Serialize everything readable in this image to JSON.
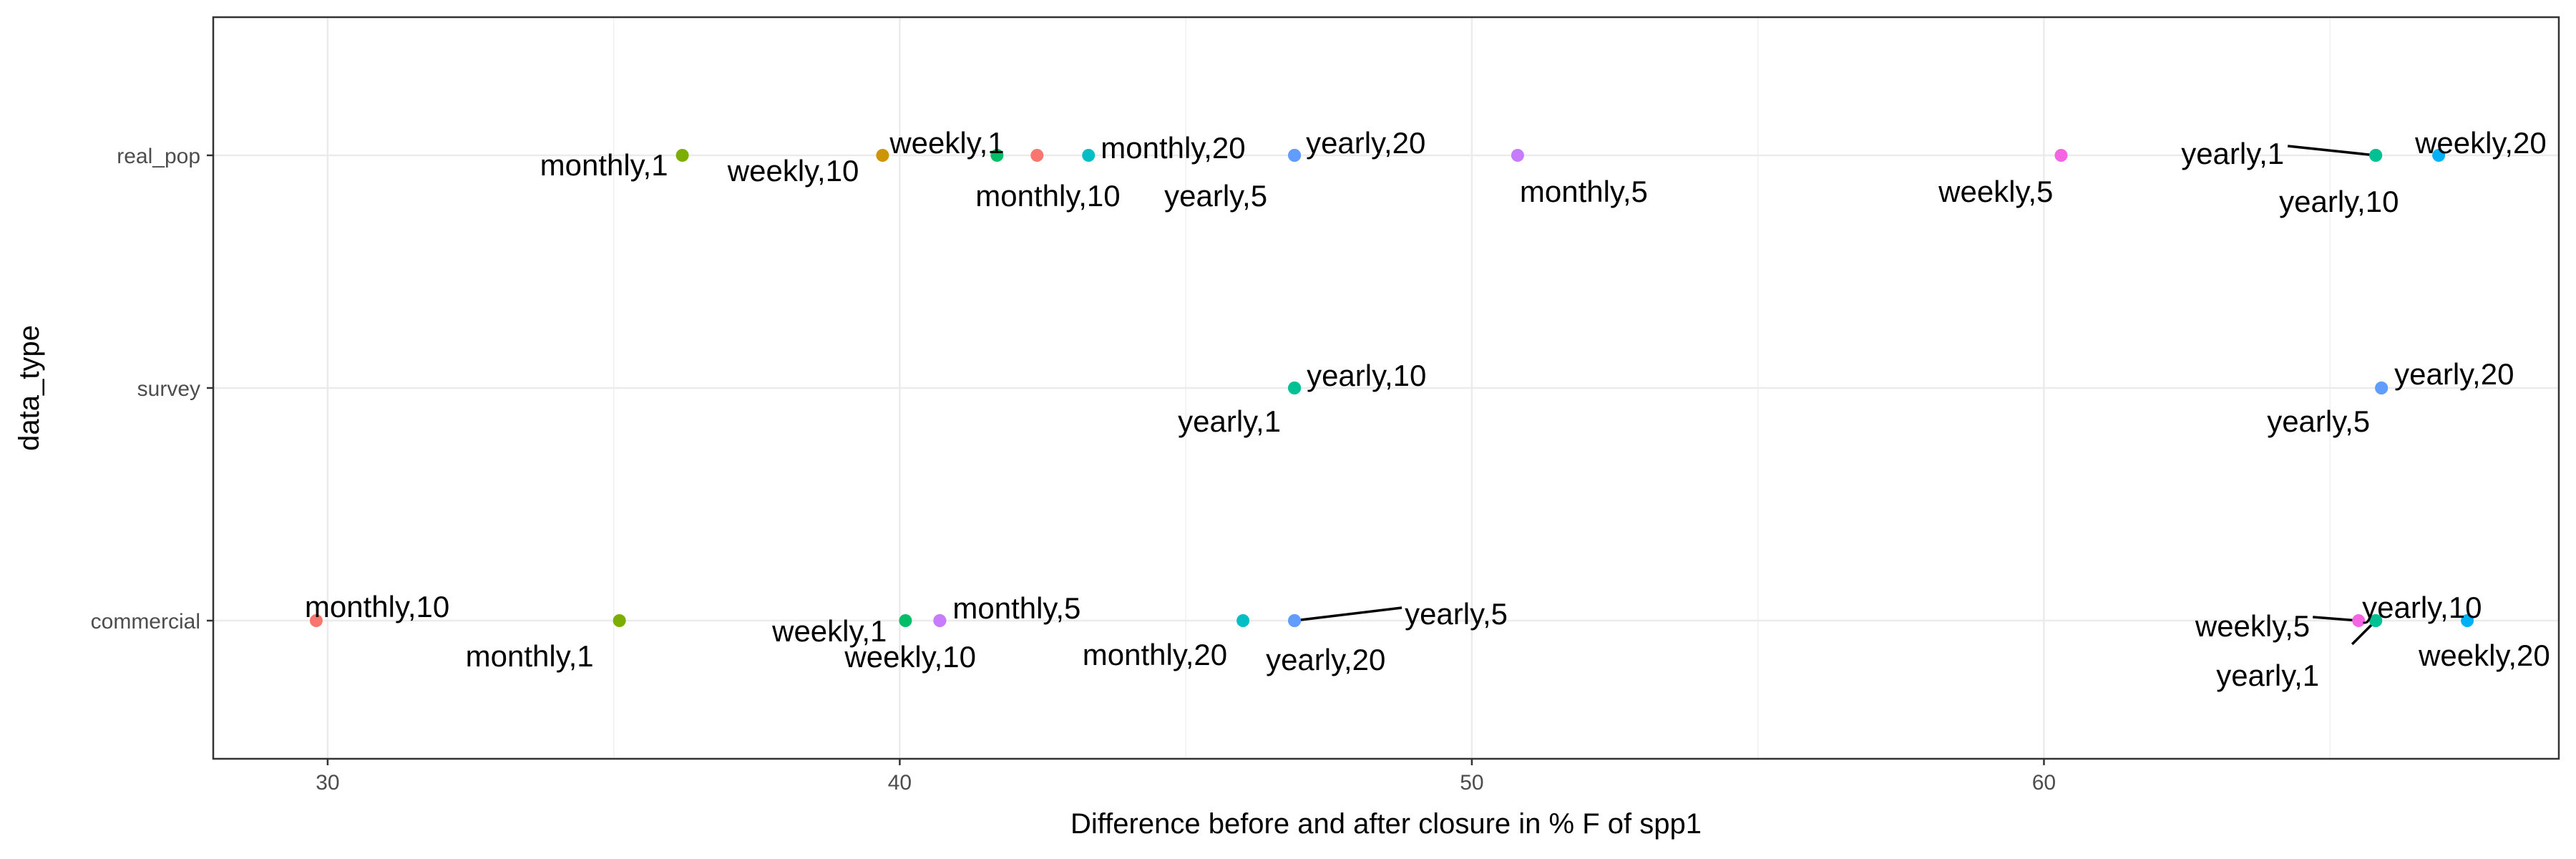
{
  "chart_data": {
    "type": "scatter",
    "title": "",
    "xlabel": "Difference before and after closure in % F of spp1",
    "ylabel": "data_type",
    "xlim": [
      28,
      69
    ],
    "x_ticks": [
      30,
      40,
      50,
      60
    ],
    "x_tick_labels": [
      "30",
      "40",
      "50",
      "60"
    ],
    "categories": [
      "commercial",
      "survey",
      "real_pop"
    ],
    "grid": true,
    "legend": "none",
    "series": [
      {
        "name": "monthly,1",
        "color": "#7CAE00",
        "points": [
          {
            "category": "real_pop",
            "x": 36.2
          },
          {
            "category": "commercial",
            "x": 35.1
          }
        ]
      },
      {
        "name": "weekly,10",
        "color": "#CD9600",
        "points": [
          {
            "category": "real_pop",
            "x": 39.7
          },
          {
            "category": "commercial",
            "x": 40.7
          }
        ]
      },
      {
        "name": "weekly,1",
        "color": "#00BE67",
        "points": [
          {
            "category": "real_pop",
            "x": 41.7
          },
          {
            "category": "commercial",
            "x": 40.1
          }
        ]
      },
      {
        "name": "monthly,10",
        "color": "#F8766D",
        "points": [
          {
            "category": "real_pop",
            "x": 42.4
          },
          {
            "category": "commercial",
            "x": 29.8
          }
        ]
      },
      {
        "name": "monthly,20",
        "color": "#00BFC4",
        "points": [
          {
            "category": "real_pop",
            "x": 43.3
          },
          {
            "category": "commercial",
            "x": 46.0
          }
        ]
      },
      {
        "name": "yearly,5",
        "color": "#619CFF",
        "points": [
          {
            "category": "real_pop",
            "x": 46.9
          },
          {
            "category": "survey",
            "x": 65.9
          },
          {
            "category": "commercial",
            "x": 46.9
          }
        ]
      },
      {
        "name": "yearly,20",
        "color": "#619CFF",
        "points": [
          {
            "category": "real_pop",
            "x": 46.9
          },
          {
            "category": "survey",
            "x": 65.9
          },
          {
            "category": "commercial",
            "x": 46.9
          }
        ]
      },
      {
        "name": "monthly,5",
        "color": "#C77CFF",
        "points": [
          {
            "category": "real_pop",
            "x": 50.8
          },
          {
            "category": "commercial",
            "x": 40.7
          }
        ]
      },
      {
        "name": "weekly,5",
        "color": "#F564E3",
        "points": [
          {
            "category": "real_pop",
            "x": 60.3
          },
          {
            "category": "commercial",
            "x": 65.5
          }
        ]
      },
      {
        "name": "yearly,1",
        "color": "#00C094",
        "points": [
          {
            "category": "real_pop",
            "x": 65.8
          },
          {
            "category": "survey",
            "x": 46.9
          },
          {
            "category": "commercial",
            "x": 65.8
          }
        ]
      },
      {
        "name": "yearly,10",
        "color": "#00C094",
        "points": [
          {
            "category": "real_pop",
            "x": 65.8
          },
          {
            "category": "survey",
            "x": 46.9
          },
          {
            "category": "commercial",
            "x": 65.8
          }
        ]
      },
      {
        "name": "weekly,20",
        "color": "#00B0F6",
        "points": [
          {
            "category": "real_pop",
            "x": 66.9
          },
          {
            "category": "commercial",
            "x": 67.4
          }
        ]
      }
    ]
  }
}
